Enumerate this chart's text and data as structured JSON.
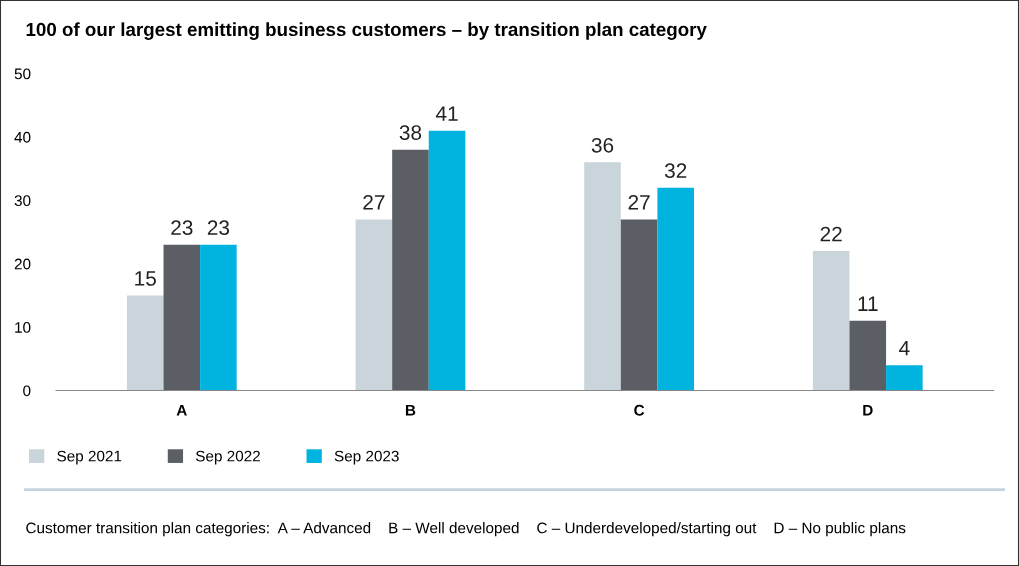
{
  "chart_data": {
    "type": "bar",
    "title": "100 of our largest emitting business customers – by transition plan category",
    "categories": [
      "A",
      "B",
      "C",
      "D"
    ],
    "series": [
      {
        "name": "Sep 2021",
        "color": "#c9d4db",
        "values": [
          15,
          27,
          36,
          22
        ]
      },
      {
        "name": "Sep 2022",
        "color": "#5b5e64",
        "values": [
          23,
          38,
          27,
          11
        ]
      },
      {
        "name": "Sep 2023",
        "color": "#00b4df",
        "values": [
          23,
          41,
          32,
          4
        ]
      }
    ],
    "ylim": [
      0,
      50
    ],
    "yticks": [
      0,
      10,
      20,
      30,
      40,
      50
    ],
    "grid": false,
    "legend": "bottom left",
    "data_labels": true,
    "annotations": [
      "Customer transition plan categories:  A – Advanced    B – Well developed    C – Underdeveloped/starting out    D – No public plans"
    ]
  }
}
